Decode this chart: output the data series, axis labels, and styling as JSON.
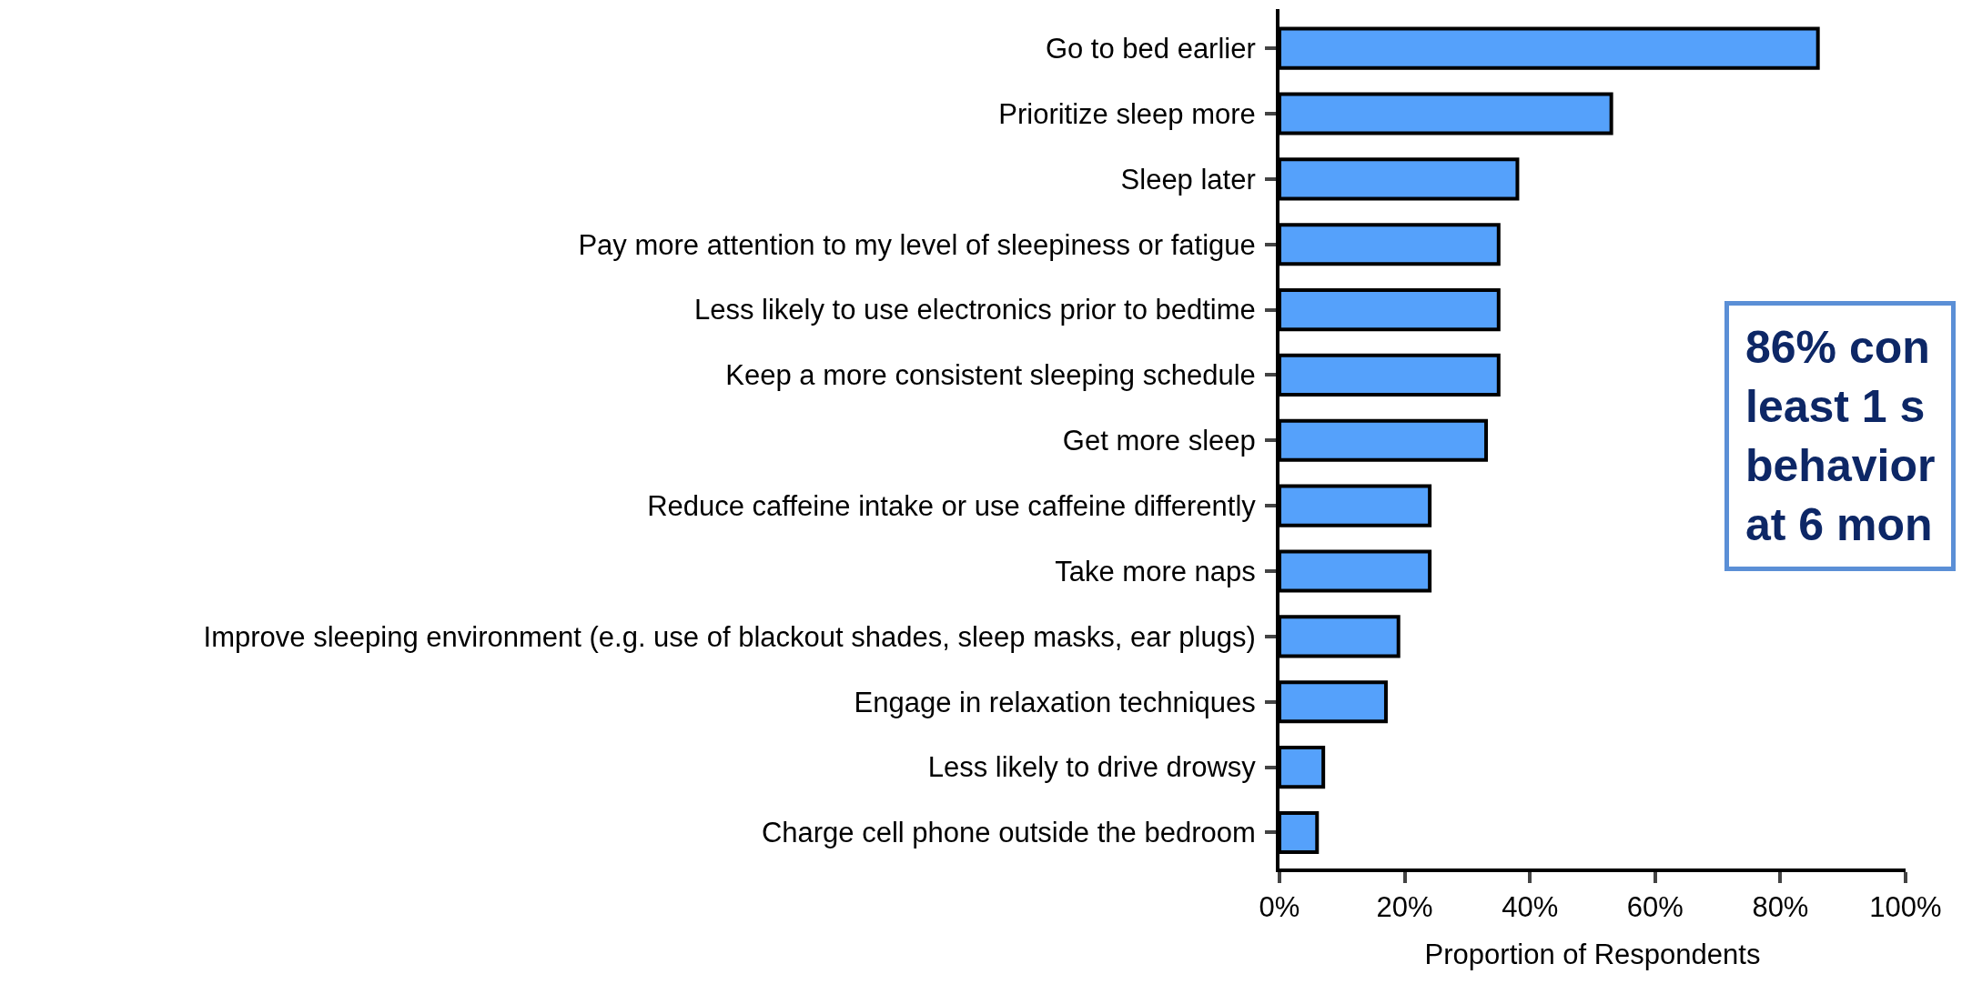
{
  "chart_data": {
    "type": "bar",
    "orientation": "horizontal",
    "categories": [
      "Go to bed earlier",
      "Prioritize sleep more",
      "Sleep later",
      "Pay more attention to my level of sleepiness or fatigue",
      "Less likely to use electronics prior to bedtime",
      "Keep a more consistent sleeping schedule",
      "Get more sleep",
      "Reduce caffeine intake or use caffeine differently",
      "Take more naps",
      "Improve sleeping environment (e.g. use of blackout shades, sleep masks, ear plugs)",
      "Engage in relaxation techniques",
      "Less likely to drive drowsy",
      "Charge cell phone outside the bedroom"
    ],
    "values": [
      86,
      53,
      38,
      35,
      35,
      35,
      33,
      24,
      24,
      19,
      17,
      7,
      6
    ],
    "color": "#55a1fb",
    "xlabel": "Proportion of Respondents",
    "xlim": [
      0,
      100
    ],
    "xticks": [
      {
        "value": 0,
        "label": "0%"
      },
      {
        "value": 20,
        "label": "20%"
      },
      {
        "value": 40,
        "label": "40%"
      },
      {
        "value": 60,
        "label": "60%"
      },
      {
        "value": 80,
        "label": "80%"
      },
      {
        "value": 100,
        "label": "100%"
      }
    ],
    "annotations": [
      "86% con\nleast 1 s\nbehavior\nat 6 mon"
    ],
    "grid": false
  }
}
